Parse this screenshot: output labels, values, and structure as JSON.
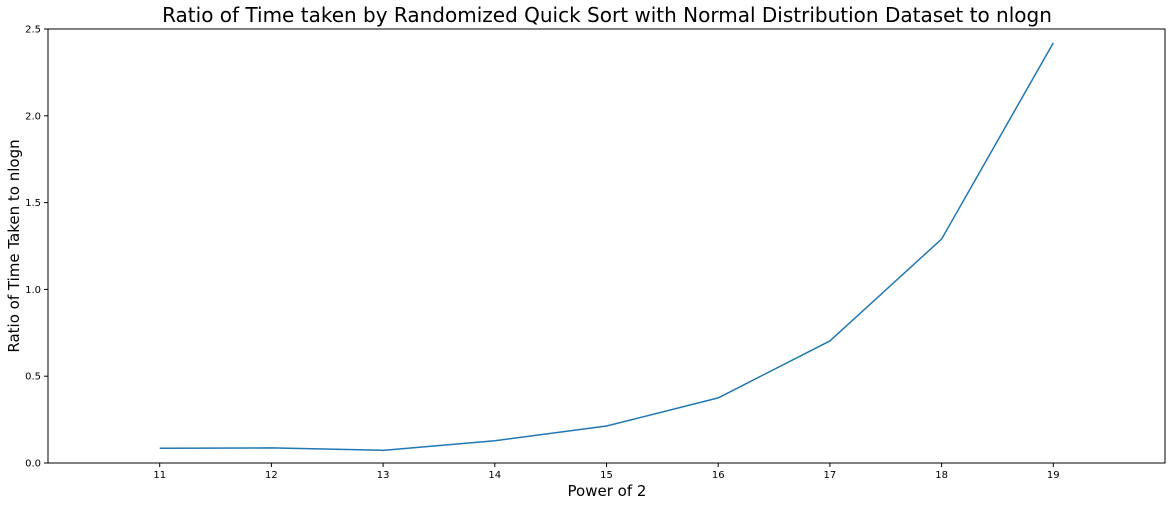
{
  "chart_data": {
    "type": "line",
    "title": "Ratio of Time taken by Randomized Quick Sort with Normal Distribution Dataset to nlogn",
    "xlabel": "Power of 2",
    "ylabel": "Ratio of Time Taken to nlogn",
    "x": [
      11,
      12,
      13,
      14,
      15,
      16,
      17,
      18,
      19
    ],
    "series": [
      {
        "values": [
          0.085,
          0.087,
          0.073,
          0.128,
          0.213,
          0.375,
          0.703,
          1.29,
          2.42
        ],
        "color": "#1f77b4"
      }
    ],
    "xlim": [
      10,
      20
    ],
    "ylim": [
      0,
      2.5
    ],
    "xticks": [
      "11",
      "12",
      "13",
      "14",
      "15",
      "16",
      "17",
      "18",
      "19"
    ],
    "yticks": [
      "0.0",
      "0.5",
      "1.0",
      "1.5",
      "2.0",
      "2.5"
    ],
    "grid": false,
    "legend": "none"
  }
}
